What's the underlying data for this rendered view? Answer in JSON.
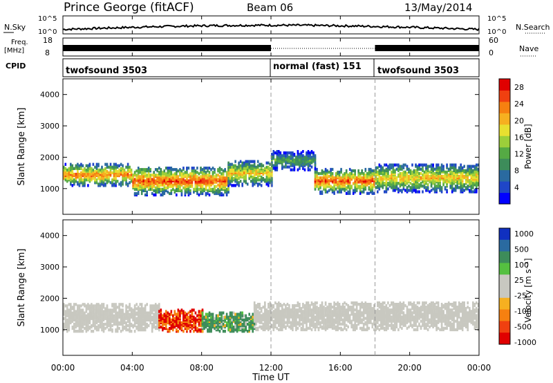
{
  "header": {
    "station": "Prince George (fitACF)",
    "beam": "Beam 06",
    "date": "13/May/2014"
  },
  "strips": {
    "nsky_label": "N.Sky",
    "nsky_ticks": [
      "10^5",
      "10^0"
    ],
    "nsearch_label": "N.Search",
    "nsearch_ticks": [
      "10^5",
      "10^0"
    ],
    "freq_label_1": "Freq.",
    "freq_label_2": "[MHz]",
    "freq_ticks": [
      "18",
      "8"
    ],
    "nave_label": "Nave",
    "nave_ticks": [
      "60",
      "0"
    ],
    "cpid_label": "CPID",
    "cpid_segments": [
      "twofsound 3503",
      "normal (fast) 151",
      "twofsound 3503"
    ]
  },
  "chart_data": [
    {
      "type": "heatmap",
      "name": "Power",
      "ylabel": "Slant Range [km]",
      "yticks": [
        "4000",
        "3000",
        "2000",
        "1000"
      ],
      "ylim": [
        180,
        4500
      ],
      "colorbar_label": "Power [dB]",
      "colorbar_ticks": [
        "28",
        "24",
        "20",
        "16",
        "12",
        "8",
        "4"
      ],
      "colorbar_range": [
        0,
        30
      ],
      "colors": [
        "#0000ff",
        "#1f46c8",
        "#2a6aa0",
        "#3d8c5a",
        "#55aa44",
        "#9ccf3a",
        "#e8e030",
        "#f6b020",
        "#f68010",
        "#f04010",
        "#e00000"
      ],
      "bands": [
        {
          "t_start": 0.0,
          "t_end": 4.0,
          "r_center": 1450,
          "r_width": 700,
          "peak_db": 24
        },
        {
          "t_start": 4.0,
          "t_end": 9.5,
          "r_center": 1250,
          "r_width": 900,
          "peak_db": 26
        },
        {
          "t_start": 9.5,
          "t_end": 12.0,
          "r_center": 1500,
          "r_width": 800,
          "peak_db": 20
        },
        {
          "t_start": 12.0,
          "t_end": 14.5,
          "r_center": 1900,
          "r_width": 600,
          "peak_db": 12
        },
        {
          "t_start": 14.5,
          "t_end": 18.0,
          "r_center": 1250,
          "r_width": 800,
          "peak_db": 26
        },
        {
          "t_start": 18.0,
          "t_end": 24.0,
          "r_center": 1350,
          "r_width": 900,
          "peak_db": 20
        }
      ]
    },
    {
      "type": "heatmap",
      "name": "Velocity",
      "ylabel": "Slant Range [km]",
      "yticks": [
        "4000",
        "3000",
        "2000",
        "1000"
      ],
      "ylim": [
        180,
        4500
      ],
      "colorbar_label": "Velocity [m s⁻¹]",
      "colorbar_ticks": [
        "1000",
        "500",
        "100",
        "25",
        "-25",
        "-100",
        "-500",
        "-1000"
      ],
      "colors": [
        "#1030c0",
        "#2a6aa0",
        "#3d8c5a",
        "#55c040",
        "#c8c8c0",
        "#c8c8c0",
        "#f6b020",
        "#f68010",
        "#f04010",
        "#e00000"
      ],
      "regions": [
        {
          "t_start": 0.0,
          "t_end": 5.5,
          "r_center": 1400,
          "r_width": 900,
          "velocity": 0
        },
        {
          "t_start": 5.5,
          "t_end": 8.0,
          "r_center": 1300,
          "r_width": 700,
          "velocity": -500
        },
        {
          "t_start": 8.0,
          "t_end": 11.0,
          "r_center": 1250,
          "r_width": 600,
          "velocity": 200
        },
        {
          "t_start": 11.0,
          "t_end": 24.0,
          "r_center": 1450,
          "r_width": 900,
          "velocity": 0
        }
      ]
    }
  ],
  "xaxis": {
    "label": "Time UT",
    "ticks": [
      "00:00",
      "04:00",
      "08:00",
      "12:00",
      "16:00",
      "20:00",
      "00:00"
    ],
    "range_hours": [
      0,
      24
    ],
    "markers_hours": [
      12,
      18
    ]
  }
}
